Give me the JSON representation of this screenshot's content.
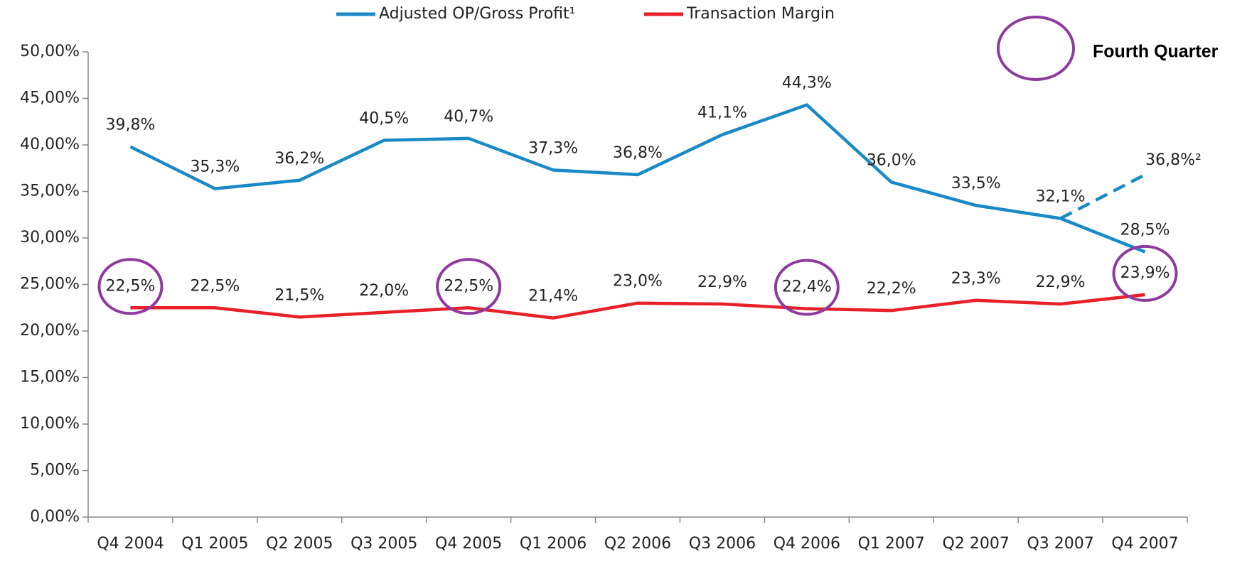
{
  "chart_data": {
    "type": "line",
    "categories": [
      "Q4 2004",
      "Q1 2005",
      "Q2 2005",
      "Q3 2005",
      "Q4 2005",
      "Q1 2006",
      "Q2 2006",
      "Q3 2006",
      "Q4 2006",
      "Q1 2007",
      "Q2 2007",
      "Q3 2007",
      "Q4 2007"
    ],
    "series": [
      {
        "name": "Adjusted OP/Gross Profit¹",
        "color": "#1a8ac6",
        "values": [
          39.8,
          35.3,
          36.2,
          40.5,
          40.7,
          37.3,
          36.8,
          41.1,
          44.3,
          36.0,
          33.5,
          32.1,
          28.5
        ],
        "value_labels": [
          "39,8%",
          "35,3%",
          "36,2%",
          "40,5%",
          "40,7%",
          "37,3%",
          "36,8%",
          "41,1%",
          "44,3%",
          "36,0%",
          "33,5%",
          "32,1%",
          "28,5%"
        ]
      },
      {
        "name": "Transaction Margin",
        "color": "#e8202a",
        "values": [
          22.5,
          22.5,
          21.5,
          22.0,
          22.5,
          21.4,
          23.0,
          22.9,
          22.4,
          22.2,
          23.3,
          22.9,
          23.9
        ],
        "value_labels": [
          "22,5%",
          "22,5%",
          "21,5%",
          "22,0%",
          "22,5%",
          "21,4%",
          "23,0%",
          "22,9%",
          "22,4%",
          "22,2%",
          "23,3%",
          "22,9%",
          "23,9%"
        ]
      },
      {
        "color": "#1a8ac6",
        "dashed": true,
        "values": [
          null,
          null,
          null,
          null,
          null,
          null,
          null,
          null,
          null,
          null,
          null,
          32.1,
          36.8
        ],
        "value_labels": [
          null,
          null,
          null,
          null,
          null,
          null,
          null,
          null,
          null,
          null,
          null,
          null,
          "36,8%²"
        ]
      }
    ],
    "highlight": {
      "label": "Fourth Quarter",
      "color": "#8e3a9e",
      "series": 1,
      "indices": [
        0,
        4,
        8,
        12
      ]
    },
    "ylim": [
      0,
      50
    ],
    "yticks": [
      {
        "value": 0,
        "label": "0,00%"
      },
      {
        "value": 5,
        "label": "5,00%"
      },
      {
        "value": 10,
        "label": "10,00%"
      },
      {
        "value": 15,
        "label": "15,00%"
      },
      {
        "value": 20,
        "label": "20,00%"
      },
      {
        "value": 25,
        "label": "25,00%"
      },
      {
        "value": 30,
        "label": "30,00%"
      },
      {
        "value": 35,
        "label": "35,00%"
      },
      {
        "value": 40,
        "label": "40,00%"
      },
      {
        "value": 45,
        "label": "45,00%"
      },
      {
        "value": 50,
        "label": "50,00%"
      }
    ],
    "legend": "top"
  }
}
